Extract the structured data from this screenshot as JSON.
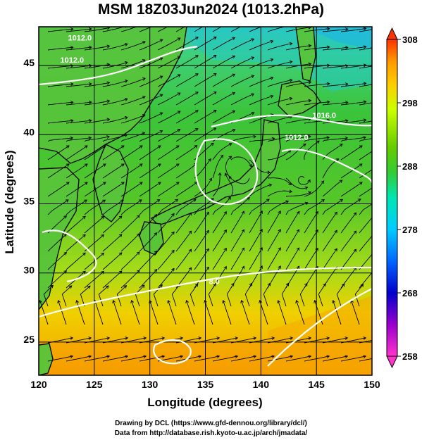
{
  "title": "MSM 18Z03Jun2024 (1013.2hPa)",
  "xaxis": {
    "label": "Longitude (degrees)",
    "min": 120,
    "max": 150,
    "ticks": [
      120,
      125,
      130,
      135,
      140,
      145,
      150
    ]
  },
  "yaxis": {
    "label": "Latitude  (degrees)",
    "min": 22.4,
    "max": 47.6,
    "ticks": [
      25,
      30,
      35,
      40,
      45
    ]
  },
  "colorbar": {
    "min": 258,
    "max": 308,
    "ticks": [
      258,
      268,
      278,
      288,
      298,
      308
    ],
    "colors": [
      "#ff33cc",
      "#9900cc",
      "#0000cc",
      "#0066ff",
      "#00ccff",
      "#00e6b3",
      "#33cc33",
      "#66cc00",
      "#ccff00",
      "#ffcc00",
      "#ff9900",
      "#ff3300"
    ]
  },
  "isobar_labels": [
    {
      "text": "1012.0",
      "lon": 123.7,
      "lat": 46.6
    },
    {
      "text": "1012.0",
      "lon": 123.0,
      "lat": 45.0
    },
    {
      "text": "1016.0",
      "lon": 145.7,
      "lat": 41.0
    },
    {
      "text": "1012.0",
      "lon": 143.2,
      "lat": 39.4
    },
    {
      "text": "8.0",
      "lon": 135.8,
      "lat": 29.0
    }
  ],
  "footer": {
    "line1": "Drawing by DCL (https://www.gfd-dennou.org/library/dcl/)",
    "line2": "Data from http://database.rish.kyoto-u.ac.jp/arch/jmadata/"
  }
}
